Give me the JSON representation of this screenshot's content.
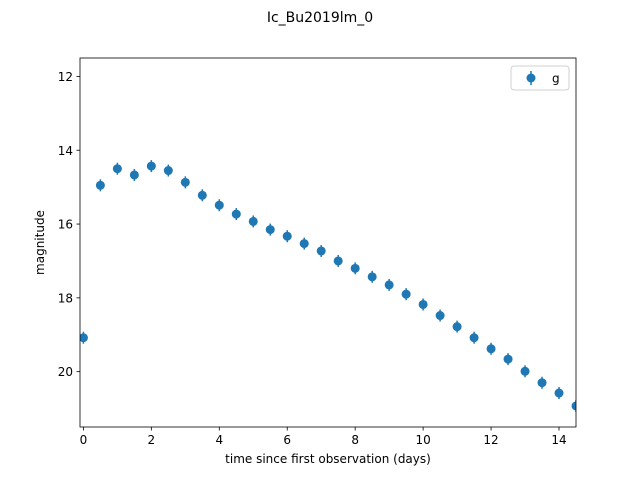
{
  "chart_data": {
    "type": "scatter",
    "title": "Ic_Bu2019lm_0",
    "xlabel": "time since first observation (days)",
    "ylabel": "magnitude",
    "xlim": [
      -0.1,
      14.5
    ],
    "ylim": [
      21.5,
      11.5
    ],
    "y_inverted": true,
    "x_ticks": [
      0,
      2,
      4,
      6,
      8,
      10,
      12,
      14
    ],
    "y_ticks": [
      12,
      14,
      16,
      18,
      20
    ],
    "grid": false,
    "legend_position": "top-right",
    "series": [
      {
        "name": "g",
        "color": "#1f77b4",
        "marker": "circle",
        "errorbars": true,
        "points": [
          {
            "x": 0.0,
            "y": 19.08
          },
          {
            "x": 0.5,
            "y": 14.95
          },
          {
            "x": 1.0,
            "y": 14.5
          },
          {
            "x": 1.5,
            "y": 14.67
          },
          {
            "x": 2.0,
            "y": 14.43
          },
          {
            "x": 2.5,
            "y": 14.55
          },
          {
            "x": 3.0,
            "y": 14.87
          },
          {
            "x": 3.5,
            "y": 15.22
          },
          {
            "x": 4.0,
            "y": 15.49
          },
          {
            "x": 4.5,
            "y": 15.73
          },
          {
            "x": 5.0,
            "y": 15.93
          },
          {
            "x": 5.5,
            "y": 16.15
          },
          {
            "x": 6.0,
            "y": 16.33
          },
          {
            "x": 6.5,
            "y": 16.53
          },
          {
            "x": 7.0,
            "y": 16.73
          },
          {
            "x": 7.5,
            "y": 17.0
          },
          {
            "x": 8.0,
            "y": 17.2
          },
          {
            "x": 8.5,
            "y": 17.43
          },
          {
            "x": 9.0,
            "y": 17.65
          },
          {
            "x": 9.5,
            "y": 17.9
          },
          {
            "x": 10.0,
            "y": 18.18
          },
          {
            "x": 10.5,
            "y": 18.48
          },
          {
            "x": 11.0,
            "y": 18.78
          },
          {
            "x": 11.5,
            "y": 19.08
          },
          {
            "x": 12.0,
            "y": 19.38
          },
          {
            "x": 12.5,
            "y": 19.66
          },
          {
            "x": 13.0,
            "y": 19.99
          },
          {
            "x": 13.5,
            "y": 20.3
          },
          {
            "x": 14.0,
            "y": 20.58
          },
          {
            "x": 14.5,
            "y": 20.93
          }
        ]
      }
    ]
  }
}
